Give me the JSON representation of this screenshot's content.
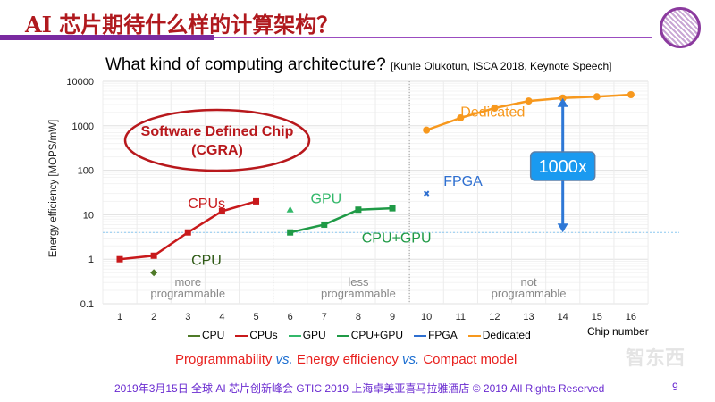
{
  "slide": {
    "title": "AI 芯片期待什么样的计算架构？",
    "subtitle": "What kind of computing architecture?",
    "citation": "[Kunle Olukotun, ISCA 2018, Keynote Speech]",
    "caption": {
      "p1": "Programmability ",
      "vs1": "vs.",
      "p2": " Energy efficiency ",
      "vs2": "vs.",
      "p3": " Compact model"
    },
    "footer": "2019年3月15日 全球 AI 芯片创新峰会 GTIC 2019 上海卓美亚喜马拉雅酒店 © 2019 All Rights Reserved",
    "page_number": "9",
    "watermark": "智东西",
    "accent_color": "#b0191e",
    "brand_color": "#7a2aa0"
  },
  "chart_data": {
    "type": "line",
    "ylabel": "Energy efficiency [MOPS/mW]",
    "xlabel": "Chip number",
    "y_scale": "log",
    "ylim": [
      0.1,
      10000
    ],
    "xlim": [
      1,
      16
    ],
    "y_ticks": [
      "0.1",
      "1",
      "10",
      "100",
      "1000",
      "10000"
    ],
    "x_ticks": [
      "1",
      "2",
      "3",
      "4",
      "5",
      "6",
      "7",
      "8",
      "9",
      "10",
      "11",
      "12",
      "13",
      "14",
      "15",
      "16"
    ],
    "grid": true,
    "legend_position": "bottom",
    "series": [
      {
        "name": "CPU",
        "color": "#4f7a28",
        "marker": "diamond",
        "x": [
          2
        ],
        "y": [
          0.5
        ]
      },
      {
        "name": "CPUs",
        "color": "#c8191b",
        "marker": "square",
        "x": [
          1,
          2,
          3,
          4,
          5
        ],
        "y": [
          1,
          1.2,
          4,
          12,
          20
        ]
      },
      {
        "name": "GPU",
        "color": "#33b86a",
        "marker": "triangle",
        "x": [
          6
        ],
        "y": [
          13
        ]
      },
      {
        "name": "CPU+GPU",
        "color": "#1f9a46",
        "marker": "square",
        "x": [
          6,
          7,
          8,
          9
        ],
        "y": [
          4,
          6,
          13,
          14
        ]
      },
      {
        "name": "FPGA",
        "color": "#2e6fd0",
        "marker": "x",
        "x": [
          10
        ],
        "y": [
          30
        ]
      },
      {
        "name": "Dedicated",
        "color": "#f7981d",
        "marker": "circle",
        "x": [
          10,
          11,
          12,
          13,
          14,
          15,
          16
        ],
        "y": [
          800,
          1500,
          2500,
          3600,
          4200,
          4500,
          5000
        ]
      }
    ],
    "reference_line_y": 4,
    "region_dividers_x": [
      5.5,
      9.5
    ],
    "annotations": {
      "series_labels": [
        {
          "text": "CPUs",
          "color": "#c8191b",
          "x": 3,
          "y": 14
        },
        {
          "text": "CPU",
          "color": "#2f5a16",
          "x": 3.1,
          "y": 0.75
        },
        {
          "text": "GPU",
          "color": "#33b86a",
          "x": 6.6,
          "y": 18
        },
        {
          "text": "CPU+GPU",
          "color": "#1f9a46",
          "x": 8.1,
          "y": 2.4
        },
        {
          "text": "FPGA",
          "color": "#2e6fd0",
          "x": 10.5,
          "y": 45
        },
        {
          "text": "Dedicated",
          "color": "#f7981d",
          "x": 11,
          "y": 1600
        }
      ],
      "regions": [
        {
          "l1": "more",
          "l2": "programmable",
          "x": 3
        },
        {
          "l1": "less",
          "l2": "programmable",
          "x": 8
        },
        {
          "l1": "not",
          "l2": "programmable",
          "x": 13
        }
      ],
      "callout": "Software Defined Chip",
      "callout2": "(CGRA)",
      "ratio_label": "1000x",
      "arrow_x": 14,
      "arrow_from": 4,
      "arrow_to": 4200
    }
  }
}
